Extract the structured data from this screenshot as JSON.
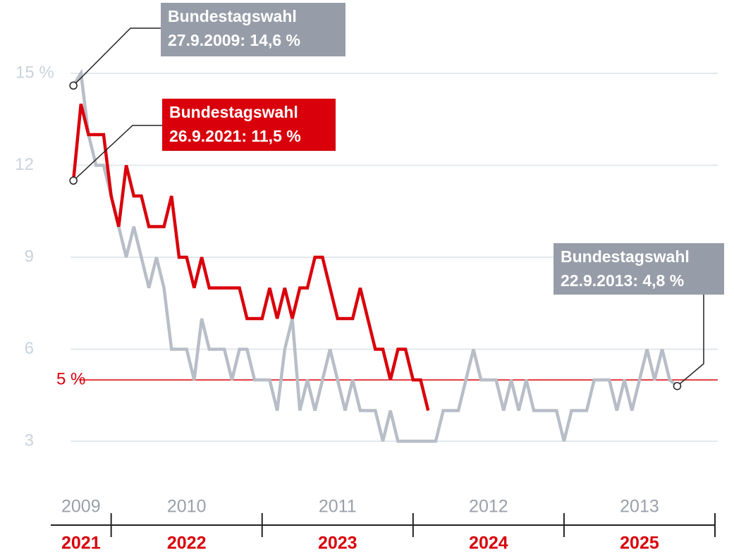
{
  "chart_data": {
    "type": "line",
    "x": [
      2009.75,
      2009.8,
      2009.85,
      2009.9,
      2009.95,
      2010,
      2010.05,
      2010.1,
      2010.15,
      2010.2,
      2010.25,
      2010.3,
      2010.35,
      2010.4,
      2010.45,
      2010.5,
      2010.55,
      2010.6,
      2010.65,
      2010.7,
      2010.75,
      2010.8,
      2010.85,
      2010.9,
      2010.95,
      2011,
      2011.05,
      2011.1,
      2011.15,
      2011.2,
      2011.25,
      2011.3,
      2011.35,
      2011.4,
      2011.45,
      2011.5,
      2011.55,
      2011.6,
      2011.65,
      2011.7,
      2011.75,
      2011.8,
      2011.85,
      2011.9,
      2011.95,
      2012,
      2012.05,
      2012.1,
      2012.15,
      2012.2,
      2012.25,
      2012.3,
      2012.35,
      2012.4,
      2012.45,
      2012.5,
      2012.55,
      2012.6,
      2012.65,
      2012.7,
      2012.75,
      2012.8,
      2012.85,
      2012.9,
      2012.95,
      2013,
      2013.05,
      2013.1,
      2013.15,
      2013.2,
      2013.25,
      2013.3,
      2013.35,
      2013.4,
      2013.45,
      2013.5,
      2013.55,
      2013.6,
      2013.65,
      2013.7,
      2013.75
    ],
    "series": [
      {
        "color": "#b8bec7",
        "values": [
          14.6,
          15,
          13,
          12,
          12,
          11,
          10,
          9,
          10,
          9,
          8,
          9,
          8,
          6,
          6,
          6,
          5,
          7,
          6,
          6,
          6,
          5,
          6,
          6,
          5,
          5,
          5,
          4,
          6,
          7,
          4,
          5,
          4,
          5,
          6,
          5,
          4,
          5,
          4,
          4,
          4,
          3,
          4,
          3,
          3,
          3,
          3,
          3,
          3,
          4,
          4,
          4,
          5,
          6,
          5,
          5,
          5,
          4,
          5,
          4,
          5,
          4,
          4,
          4,
          4,
          3,
          4,
          4,
          4,
          5,
          5,
          5,
          4,
          5,
          4,
          5,
          6,
          5,
          6,
          5,
          4.8
        ]
      },
      {
        "color": "#d9000b",
        "values": [
          11.5,
          14,
          13,
          13,
          13,
          11,
          10,
          12,
          11,
          11,
          10,
          10,
          10,
          11,
          9,
          9,
          8,
          9,
          8,
          8,
          8,
          8,
          8,
          7,
          7,
          7,
          8,
          7,
          8,
          7,
          8,
          8,
          9,
          9,
          8,
          7,
          7,
          7,
          8,
          7,
          6,
          6,
          5,
          6,
          6,
          5,
          5,
          4,
          null,
          null,
          null,
          null,
          null,
          null,
          null,
          null,
          null,
          null,
          null,
          null,
          null,
          null,
          null,
          null,
          null,
          null,
          null,
          null,
          null,
          null,
          null,
          null,
          null,
          null,
          null,
          null,
          null,
          null,
          null,
          null,
          null
        ]
      }
    ],
    "xlim": [
      2009.6,
      2014
    ],
    "xticks": [
      2010,
      2011,
      2012,
      2013,
      2014
    ],
    "ylim": [
      2,
      16
    ],
    "yticks": [
      3,
      6,
      9,
      12,
      {
        "value": 15,
        "label": "15 %"
      }
    ],
    "grid": true,
    "year_labels_top": [
      "2009",
      "2010",
      "2011",
      "2012",
      "2013"
    ],
    "year_labels_bottom": [
      "2021",
      "2022",
      "2023",
      "2024",
      "2025"
    ],
    "reference": {
      "value": 5,
      "label": "5 %",
      "color": "#d9000b"
    },
    "annotations": [
      {
        "lines": [
          "Bundestagswahl",
          "27.9.2009: 14,6 %"
        ],
        "color": "#979da8"
      },
      {
        "lines": [
          "Bundestagswahl",
          "26.9.2021: 11,5 %"
        ],
        "color": "#d9000b"
      },
      {
        "lines": [
          "Bundestagswahl",
          "22.9.2013: 4,8 %"
        ],
        "color": "#979da8"
      }
    ]
  }
}
